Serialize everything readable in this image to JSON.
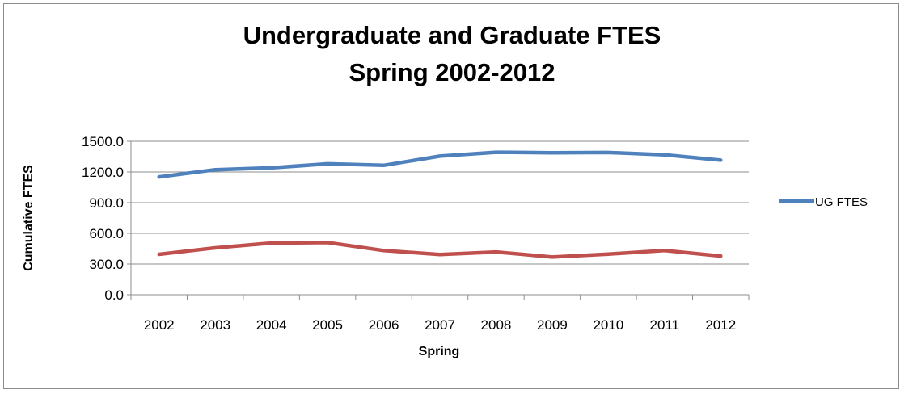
{
  "chart_data": {
    "type": "line",
    "title": "Undergraduate and Graduate FTES",
    "subtitle": "Spring 2002-2012",
    "xlabel": "Spring",
    "ylabel": "Cumulative FTES",
    "categories": [
      "2002",
      "2003",
      "2004",
      "2005",
      "2006",
      "2007",
      "2008",
      "2009",
      "2010",
      "2011",
      "2012"
    ],
    "ylim": [
      0,
      1500
    ],
    "yticks": [
      "0.0",
      "300.0",
      "600.0",
      "900.0",
      "1200.0",
      "1500.0"
    ],
    "grid": true,
    "legend_position": "right",
    "series": [
      {
        "name": "UG FTES",
        "color": "#4F81BD",
        "values": [
          1152,
          1222,
          1240,
          1280,
          1265,
          1355,
          1393,
          1388,
          1390,
          1368,
          1315
        ]
      },
      {
        "name": "",
        "color": "#C0504D",
        "values": [
          395,
          458,
          505,
          510,
          432,
          393,
          418,
          368,
          397,
          433,
          378
        ]
      }
    ]
  }
}
